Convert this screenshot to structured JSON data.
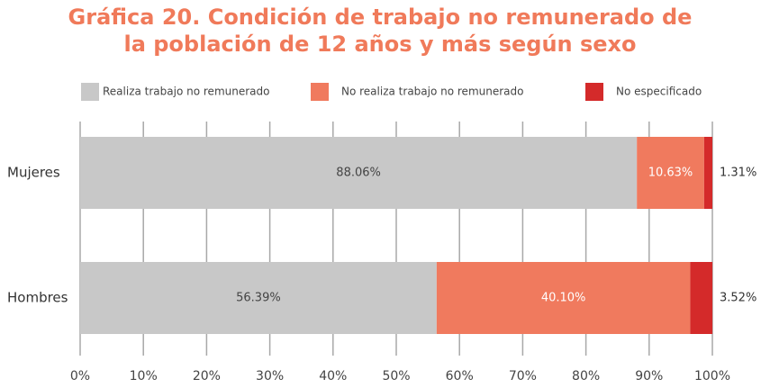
{
  "chart_data": {
    "type": "stacked-barh",
    "title": [
      "Gráfica 20. Condición de trabajo no remunerado de",
      "la población de 12 años y más según sexo"
    ],
    "categories": [
      "Mujeres",
      "Hombres"
    ],
    "series": [
      {
        "name": "Realiza trabajo no remunerado",
        "color": "#c8c8c8",
        "values": [
          88.06,
          56.39
        ],
        "value_labels": [
          "88.06%",
          "56.39%"
        ]
      },
      {
        "name": "No realiza trabajo no remunerado",
        "color": "#f07a5e",
        "values": [
          10.63,
          40.1
        ],
        "value_labels": [
          "10.63%",
          "40.10%"
        ]
      },
      {
        "name": "No especificado",
        "color": "#d42a2a",
        "values": [
          1.31,
          3.52
        ],
        "value_labels": [
          "1.31%",
          "3.52%"
        ]
      }
    ],
    "xlim": [
      0,
      100
    ],
    "xticks": [
      {
        "value": 0,
        "label": "0%"
      },
      {
        "value": 10,
        "label": "10%"
      },
      {
        "value": 20,
        "label": "20%"
      },
      {
        "value": 30,
        "label": "30%"
      },
      {
        "value": 40,
        "label": "40%"
      },
      {
        "value": 50,
        "label": "50%"
      },
      {
        "value": 60,
        "label": "60%"
      },
      {
        "value": 70,
        "label": "70%"
      },
      {
        "value": 80,
        "label": "80%"
      },
      {
        "value": 90,
        "label": "90%"
      },
      {
        "value": 100,
        "label": "100%"
      }
    ],
    "grid": true
  }
}
